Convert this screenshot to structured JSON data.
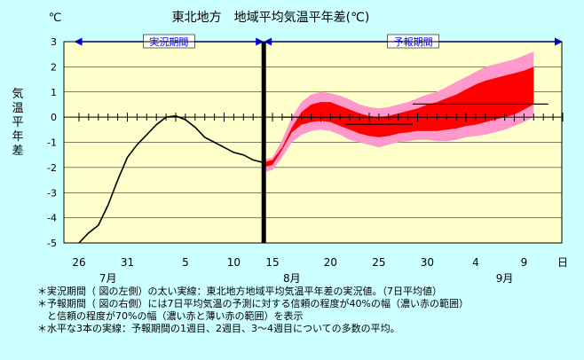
{
  "chart_data": {
    "type": "line",
    "title": "東北地方　地域平均気温平年差(℃)",
    "unit_label": "℃",
    "ylabel": "気温平年差",
    "ylim": [
      -5,
      3
    ],
    "yticks": [
      3,
      2,
      1,
      0,
      -1,
      -2,
      -3,
      -4,
      -5
    ],
    "x_start": "Jul 26",
    "x_tick_labels": [
      {
        "day": 0,
        "label": "26"
      },
      {
        "day": 5,
        "label": "31"
      },
      {
        "day": 11,
        "label": "5"
      },
      {
        "day": 16,
        "label": "10"
      },
      {
        "day": 20,
        "label": "15"
      },
      {
        "day": 26,
        "label": "20"
      },
      {
        "day": 31,
        "label": "25"
      },
      {
        "day": 36,
        "label": "30"
      },
      {
        "day": 41,
        "label": "4"
      },
      {
        "day": 46,
        "label": "9"
      },
      {
        "day": 50,
        "label": "日"
      }
    ],
    "month_labels": [
      {
        "day": 3,
        "label": "7月"
      },
      {
        "day": 22,
        "label": "8月"
      },
      {
        "day": 44,
        "label": "9月"
      }
    ],
    "x_max_day": 50,
    "divider_day": 19.1,
    "periods": [
      {
        "label": "実況期間",
        "from_day": -0.5,
        "to_day": 19.1
      },
      {
        "label": "予報期間",
        "from_day": 19.1,
        "to_day": 50
      }
    ],
    "observed": {
      "name": "実況値(7日平均)",
      "x": [
        0,
        1,
        2,
        3,
        4,
        5,
        6,
        7,
        8,
        9,
        10,
        11,
        12,
        13,
        14,
        15,
        16,
        17,
        18,
        19
      ],
      "y": [
        -5.0,
        -4.6,
        -4.3,
        -3.5,
        -2.5,
        -1.6,
        -1.1,
        -0.7,
        -0.3,
        0.0,
        0.05,
        -0.1,
        -0.4,
        -0.8,
        -1.0,
        -1.2,
        -1.4,
        -1.5,
        -1.7,
        -1.8
      ]
    },
    "forecast_band_70": {
      "x": [
        19,
        20,
        21,
        22,
        23,
        24,
        25,
        26,
        27,
        28,
        29,
        30,
        31,
        32,
        33,
        34,
        35,
        36,
        37,
        38,
        39,
        40,
        41,
        42,
        43,
        44,
        45,
        46,
        47
      ],
      "low": [
        -2.2,
        -2.1,
        -1.6,
        -1.0,
        -0.7,
        -0.55,
        -0.5,
        -0.55,
        -0.7,
        -0.9,
        -1.0,
        -1.1,
        -1.2,
        -1.1,
        -1.0,
        -0.95,
        -0.9,
        -0.9,
        -0.95,
        -0.95,
        -0.9,
        -0.8,
        -0.75,
        -0.7,
        -0.6,
        -0.5,
        -0.35,
        -0.2,
        0.0
      ],
      "high": [
        -1.7,
        -1.6,
        -0.9,
        0.0,
        0.6,
        0.9,
        1.0,
        0.95,
        0.85,
        0.7,
        0.5,
        0.4,
        0.35,
        0.4,
        0.5,
        0.6,
        0.75,
        0.9,
        1.0,
        1.2,
        1.4,
        1.6,
        1.8,
        2.0,
        2.1,
        2.2,
        2.3,
        2.45,
        2.6
      ]
    },
    "forecast_band_40": {
      "x": [
        19,
        20,
        21,
        22,
        23,
        24,
        25,
        26,
        27,
        28,
        29,
        30,
        31,
        32,
        33,
        34,
        35,
        36,
        37,
        38,
        39,
        40,
        41,
        42,
        43,
        44,
        45,
        46,
        47
      ],
      "low": [
        -2.0,
        -1.9,
        -1.3,
        -0.6,
        -0.3,
        -0.2,
        -0.15,
        -0.2,
        -0.35,
        -0.5,
        -0.65,
        -0.75,
        -0.8,
        -0.75,
        -0.65,
        -0.6,
        -0.55,
        -0.55,
        -0.55,
        -0.5,
        -0.45,
        -0.35,
        -0.3,
        -0.2,
        -0.1,
        0.0,
        0.1,
        0.3,
        0.5
      ],
      "high": [
        -1.8,
        -1.7,
        -1.2,
        -0.4,
        0.2,
        0.5,
        0.6,
        0.6,
        0.45,
        0.3,
        0.15,
        0.05,
        0.0,
        0.05,
        0.15,
        0.25,
        0.35,
        0.5,
        0.6,
        0.75,
        0.9,
        1.1,
        1.3,
        1.45,
        1.55,
        1.65,
        1.75,
        1.85,
        2.0
      ]
    },
    "forecast_means": [
      {
        "label": "1週目",
        "from_day": 21,
        "to_day": 28,
        "value": 0.0
      },
      {
        "label": "2週目",
        "from_day": 27.5,
        "to_day": 34.5,
        "value": -0.28
      },
      {
        "label": "3〜4週目",
        "from_day": 34.5,
        "to_day": 48.5,
        "value": 0.52
      }
    ],
    "colors": {
      "background": "#CCFFFF",
      "plot": "#FFFFCC",
      "grid": "#000000",
      "band_70": "#FF99CC",
      "band_40": "#FF0000",
      "observed": "#000000",
      "period_text": "#0000FF",
      "period_box": "#FFFFFF"
    }
  },
  "notes": [
    "＊実況期間（ 図の左側）の太い実線：東北地方地域平均気温平年差の実況値。（7日平均値）",
    "＊予報期間（ 図の右側）には7日平均気温の予測に対する信頼の程度が40%の幅（濃い赤の範囲）",
    "　と信頼の程度が70%の幅（濃い赤と薄い赤の範囲）を表示",
    "＊水平な3本の実線：予報期間の1週目、2週目、3〜4週目についての多数の平均。"
  ]
}
